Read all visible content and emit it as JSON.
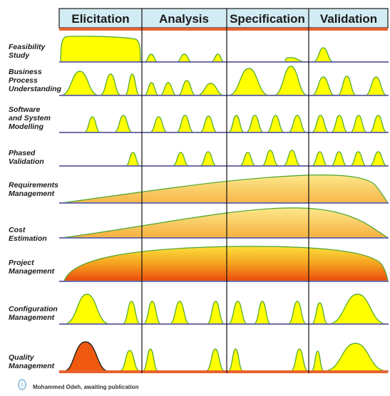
{
  "phases": [
    {
      "label": "Elicitation"
    },
    {
      "label": "Analysis"
    },
    {
      "label": "Specification"
    },
    {
      "label": "Validation"
    }
  ],
  "activities": [
    {
      "id": "feasibility-study",
      "lines": [
        "Feasibility",
        "Study"
      ]
    },
    {
      "id": "business-process-understanding",
      "lines": [
        "Business",
        "Process",
        "Understanding"
      ]
    },
    {
      "id": "software-and-system-modelling",
      "lines": [
        "Software",
        "and System",
        "Modelling"
      ]
    },
    {
      "id": "phased-validation",
      "lines": [
        "Phased",
        "Validation"
      ]
    },
    {
      "id": "requirements-management",
      "lines": [
        "Requirements",
        "Management"
      ]
    },
    {
      "id": "cost-estimation",
      "lines": [
        "Cost",
        "Estimation"
      ]
    },
    {
      "id": "project-management",
      "lines": [
        "Project",
        "Management"
      ]
    },
    {
      "id": "configuration-management",
      "lines": [
        "Configuration",
        "Management"
      ]
    },
    {
      "id": "quality-management",
      "lines": [
        "Quality",
        "Management"
      ]
    }
  ],
  "credit": {
    "text": "Mohammed Odeh, awaiting publication"
  },
  "colors": {
    "header_fill": "#d2ecf4",
    "header_bar": "#e8622c",
    "hump_fill": "#ffff00",
    "hump_stroke": "#4aa52e",
    "baseline": "#6f6fa8",
    "quality_peak": "#f05a10",
    "gradient_top": "#fde36e",
    "gradient_bottom": "#ef7a1a"
  }
}
